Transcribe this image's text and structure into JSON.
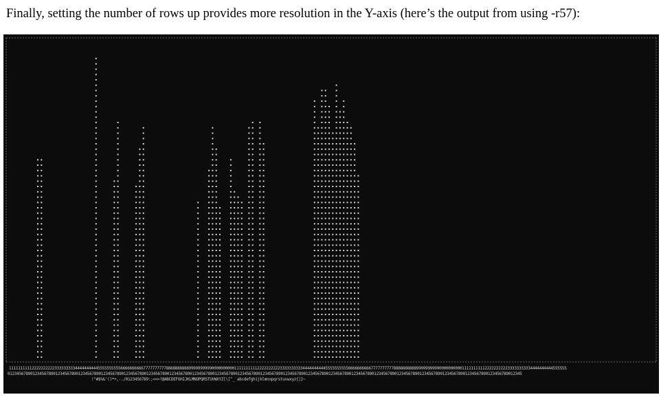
{
  "caption": "Finally, setting the number of rows up provides more resolution in the Y-axis (here’s the output from using -r57):",
  "terminal": {
    "background": "#0c0c0c",
    "glyph_color": "#d8d8d8",
    "plot_char": "*",
    "rows": 57,
    "axis_tens": "11111111112222222222333333333444444444455555555556666666666777777777788888888889999999999000000000011111111112222222222333333333344444444445555555555666666666677777777778888888888999999999900000000001111111111222222222233333333334444444444555555",
    "axis_ones": "0123456789012345678901234567890123456789012345678901234567890123456789012345678901234567890123456789012345678901234567890123456789012345678901234567890123456789012345678901234567890123456789012345678901234567890123456789012345",
    "axis_ascii": " !\"#$%&'()*+,-./0123456789:;<=>?@ABCDEFGHIJKLMNOPQRSTUVWXYZ[\\]^_`abcdefghijklmnopqrstuvwxyz{|}~",
    "column_heights": [
      38,
      38,
      0,
      0,
      0,
      0,
      0,
      0,
      0,
      0,
      0,
      0,
      0,
      0,
      0,
      0,
      57,
      0,
      0,
      0,
      0,
      34,
      45,
      0,
      0,
      0,
      0,
      33,
      40,
      44,
      0,
      0,
      0,
      0,
      0,
      0,
      0,
      0,
      0,
      0,
      0,
      0,
      0,
      0,
      30,
      0,
      0,
      36,
      44,
      40,
      29,
      0,
      0,
      38,
      32,
      31,
      30,
      0,
      44,
      45,
      0,
      45,
      41,
      0,
      0,
      0,
      0,
      0,
      0,
      0,
      0,
      0,
      0,
      0,
      0,
      0,
      49,
      44,
      51,
      51,
      48,
      43,
      52,
      47,
      49,
      45,
      44,
      41,
      35
    ]
  }
}
